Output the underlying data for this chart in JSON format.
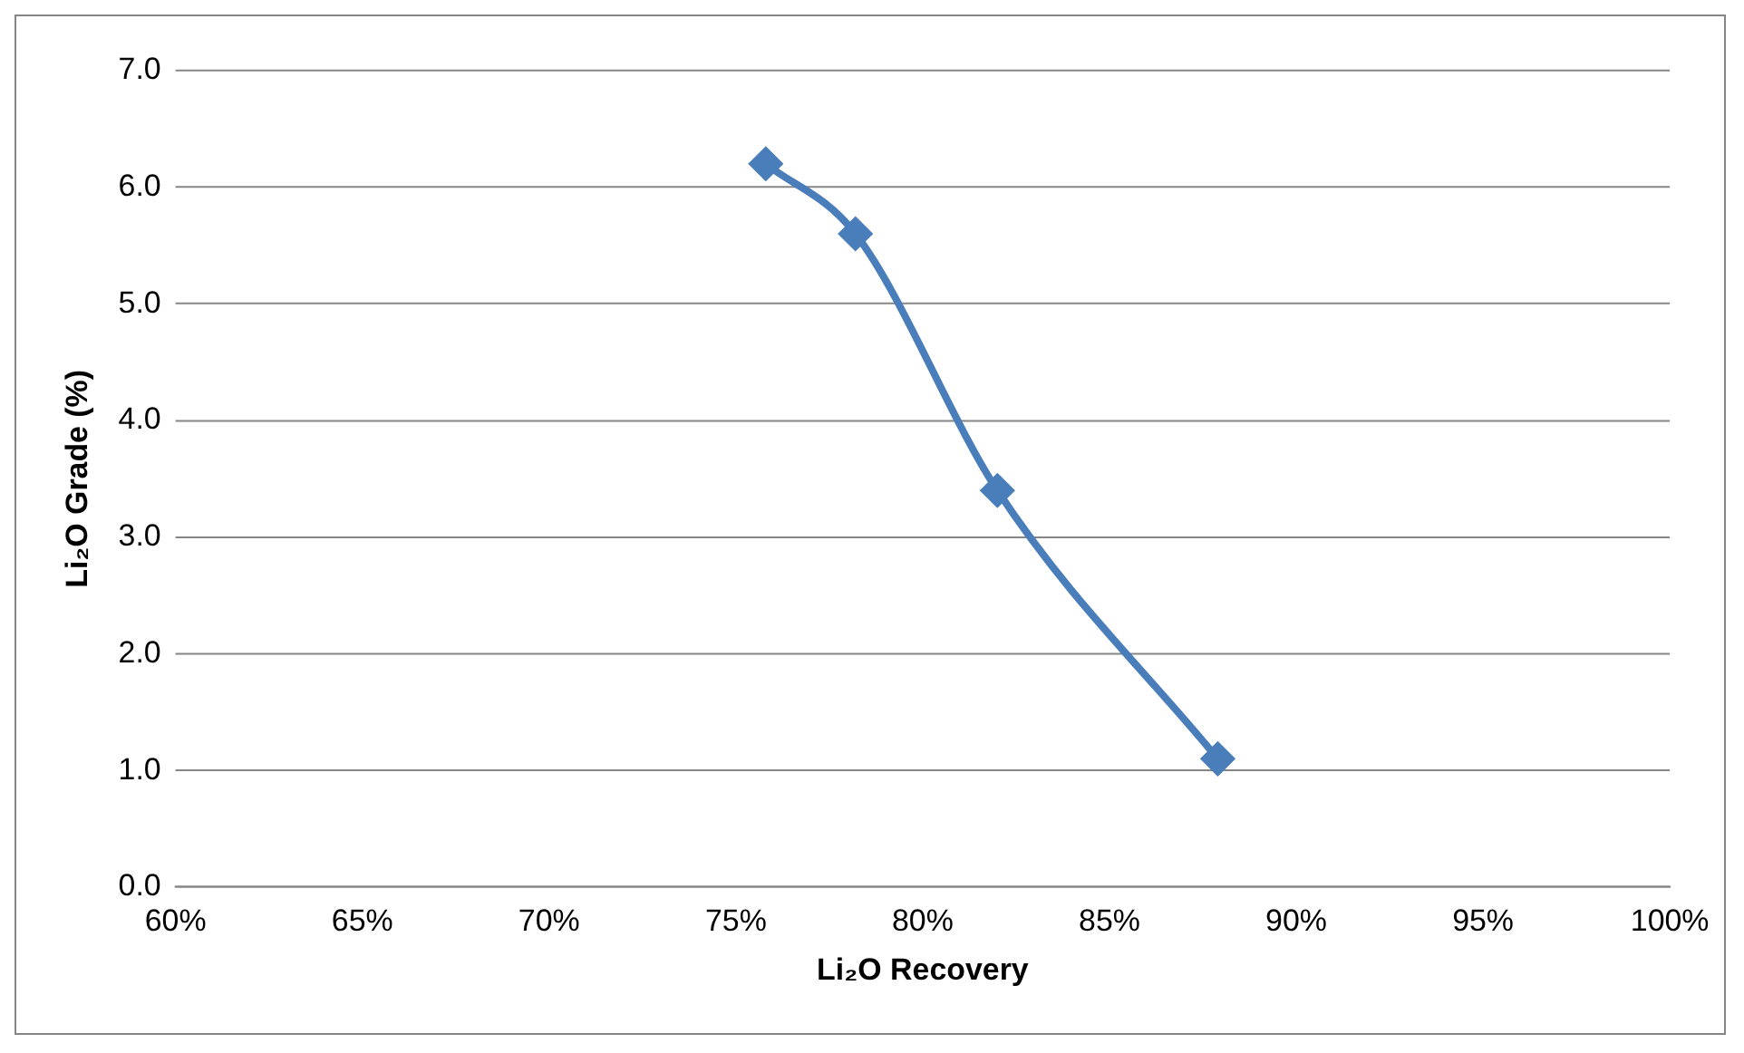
{
  "chart_data": {
    "type": "line",
    "xlabel": "Li₂O Recovery",
    "ylabel": "Li₂O Grade (%)",
    "x": [
      75.8,
      78.2,
      82.0,
      87.9
    ],
    "series": [
      {
        "color": "#4a7ebb",
        "values": [
          6.2,
          5.6,
          3.4,
          1.1
        ]
      }
    ],
    "xlim": [
      60,
      100
    ],
    "xticks": [
      {
        "value": 60,
        "label": "60%"
      },
      {
        "value": 65,
        "label": "65%"
      },
      {
        "value": 70,
        "label": "70%"
      },
      {
        "value": 75,
        "label": "75%"
      },
      {
        "value": 80,
        "label": "80%"
      },
      {
        "value": 85,
        "label": "85%"
      },
      {
        "value": 90,
        "label": "90%"
      },
      {
        "value": 95,
        "label": "95%"
      },
      {
        "value": 100,
        "label": "100%"
      }
    ],
    "ylim": [
      0,
      7
    ],
    "yticks": [
      {
        "value": 0,
        "label": "0.0"
      },
      {
        "value": 1,
        "label": "1.0"
      },
      {
        "value": 2,
        "label": "2.0"
      },
      {
        "value": 3,
        "label": "3.0"
      },
      {
        "value": 4,
        "label": "4.0"
      },
      {
        "value": 5,
        "label": "5.0"
      },
      {
        "value": 6,
        "label": "6.0"
      },
      {
        "value": 7,
        "label": "7.0"
      }
    ],
    "grid": "y",
    "legend": false,
    "marker": "diamond",
    "line_style": "solid"
  }
}
